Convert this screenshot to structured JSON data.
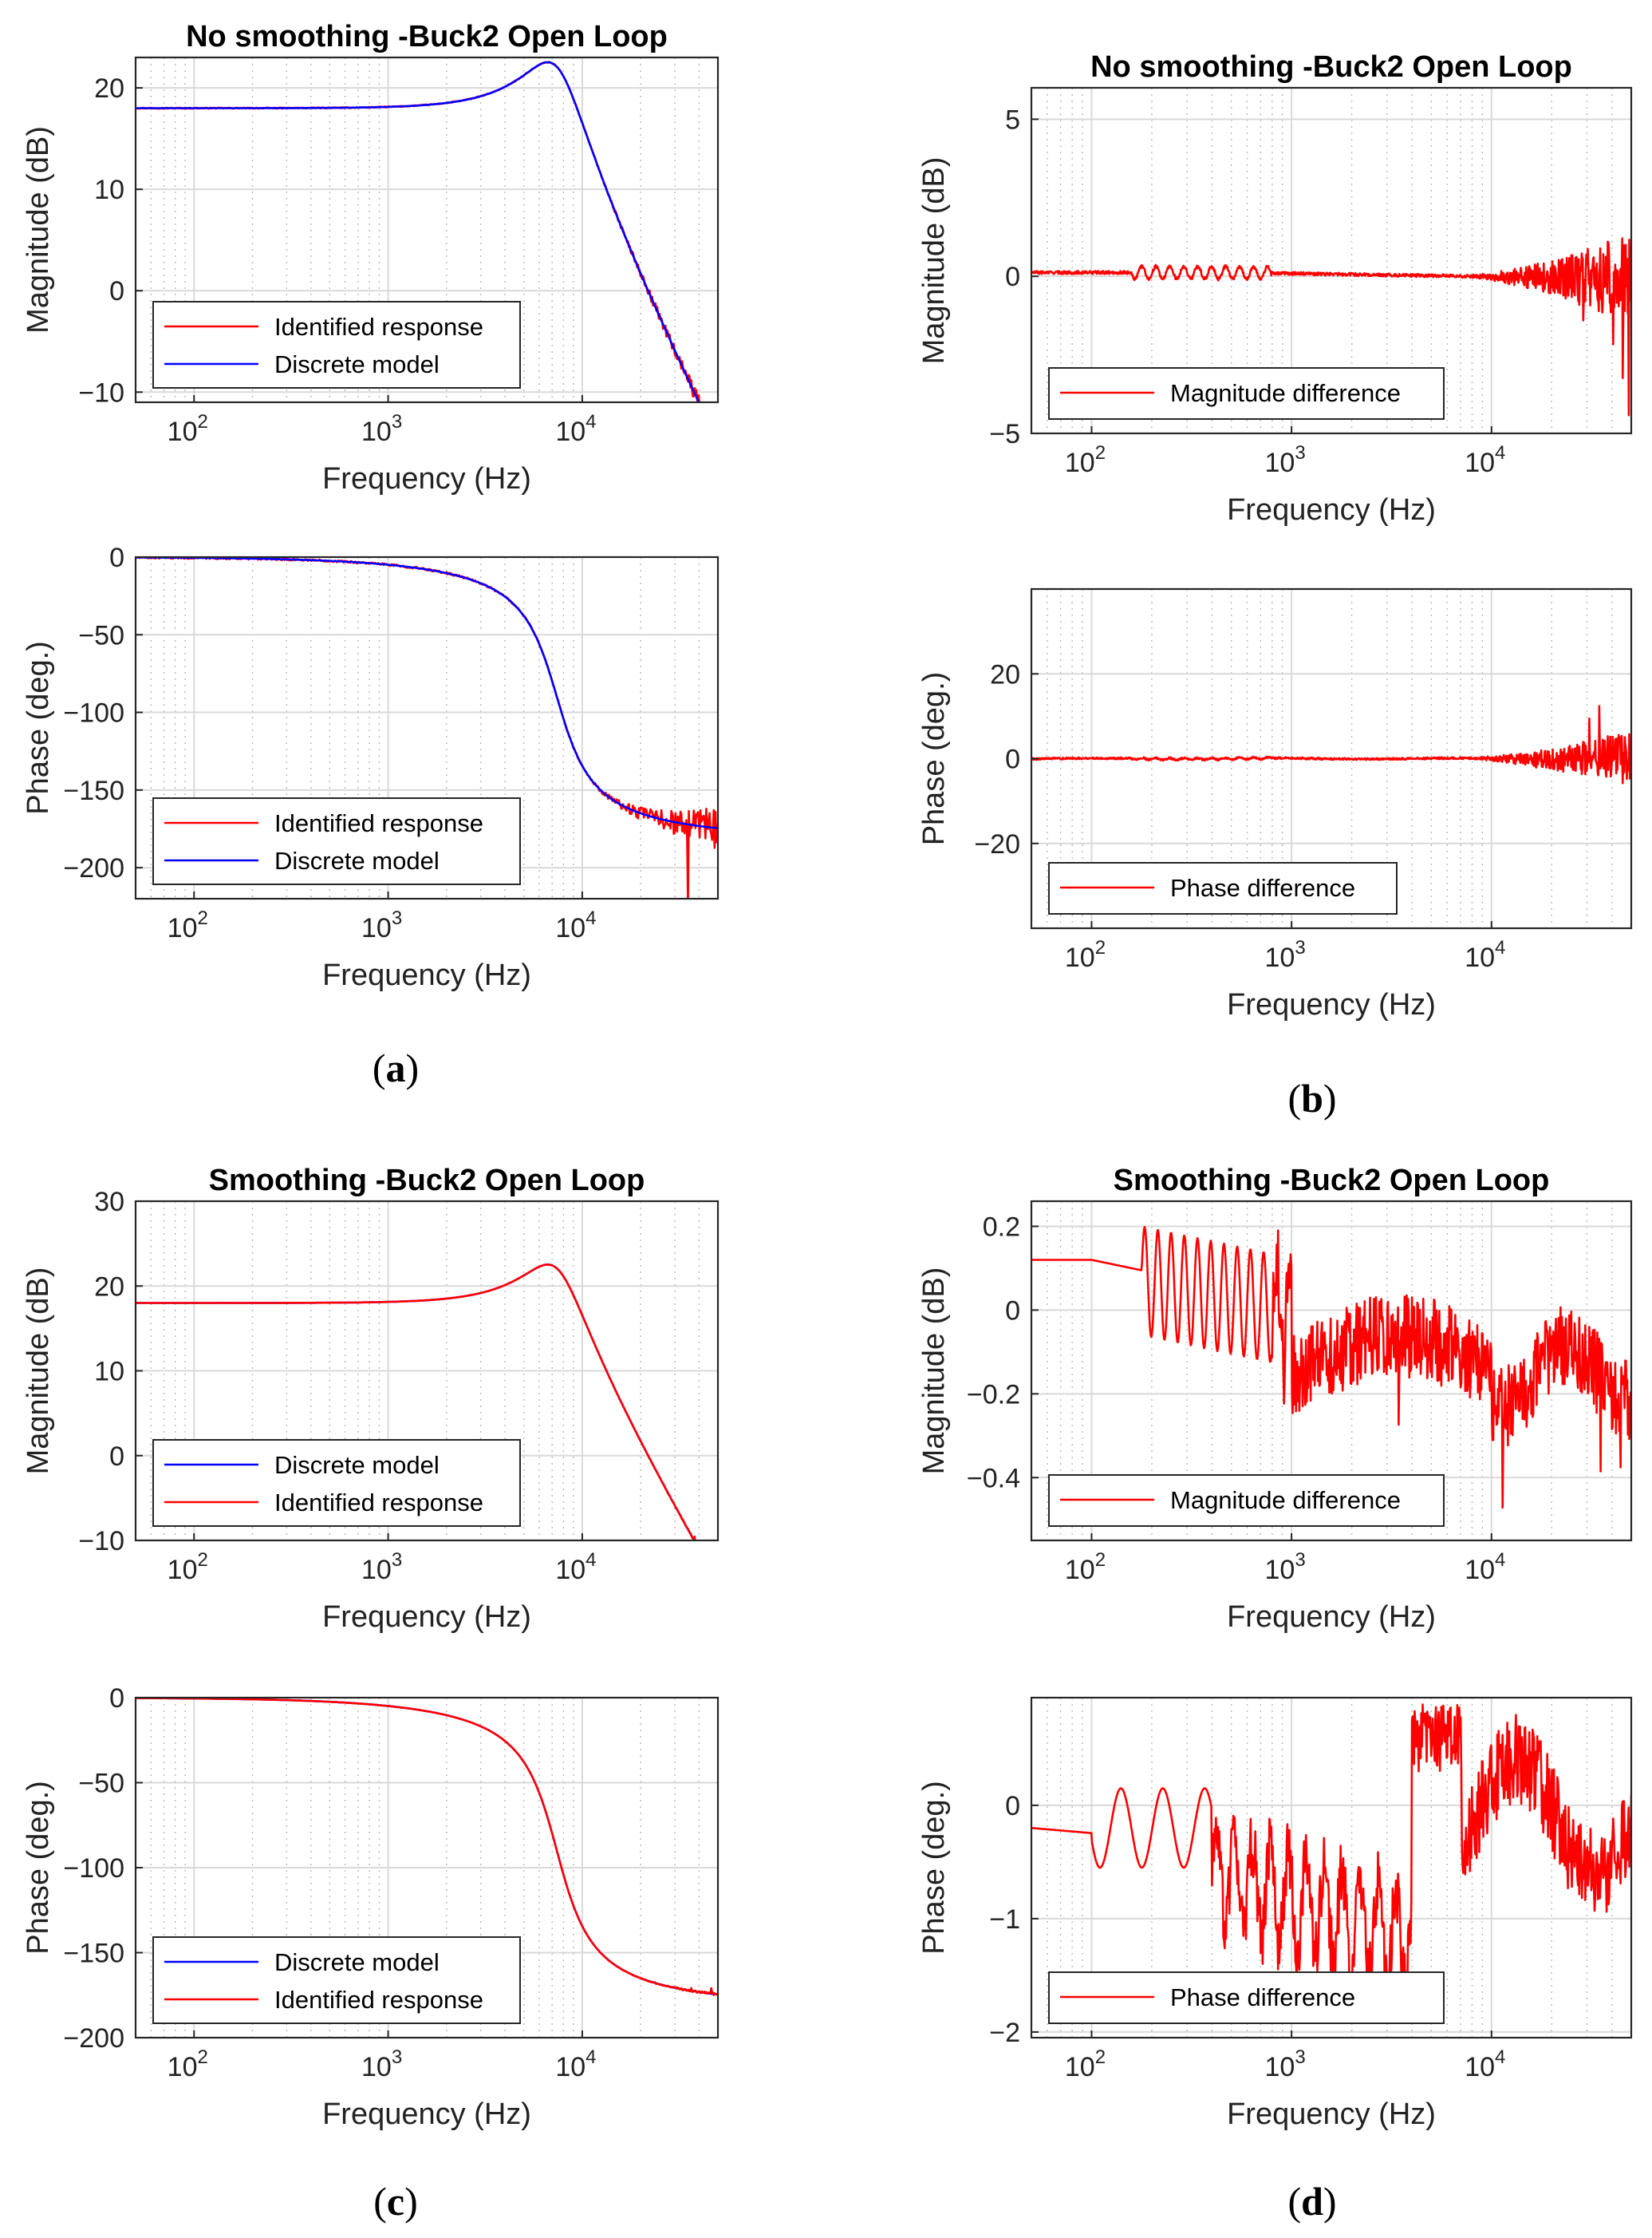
{
  "figure": {
    "captions": [
      "(a)",
      "(b)",
      "(c)",
      "(d)"
    ],
    "caption_letters": [
      "a",
      "b",
      "c",
      "d"
    ],
    "colors": {
      "identified": "#ff0000",
      "discrete": "#0000ff",
      "difference": "#ff0000",
      "grid": "#d9d9d9"
    }
  },
  "chart_data": [
    {
      "panel": "a-top",
      "type": "line",
      "title": "No smoothing -Buck2 Open Loop",
      "xlabel": "Frequency (Hz)",
      "ylabel": "Magnitude (dB)",
      "xscale": "log",
      "xlim": [
        50,
        50000
      ],
      "ylim": [
        -11,
        23
      ],
      "yticks": [
        -10,
        0,
        10,
        20
      ],
      "xticks": [
        "10^2",
        "10^3",
        "10^4"
      ],
      "legend": [
        "Identified response",
        "Discrete model"
      ],
      "legend_position": "lower-left",
      "series": [
        {
          "name": "Identified response",
          "color": "#ff0000",
          "model": "mag",
          "noise": 0.6
        },
        {
          "name": "Discrete model",
          "color": "#0000ff",
          "model": "mag",
          "noise": 0
        }
      ]
    },
    {
      "panel": "a-bottom",
      "type": "line",
      "title": "",
      "xlabel": "Frequency (Hz)",
      "ylabel": "Phase (deg.)",
      "xscale": "log",
      "xlim": [
        50,
        50000
      ],
      "ylim": [
        -220,
        0
      ],
      "yticks": [
        -200,
        -150,
        -100,
        -50,
        0
      ],
      "xticks": [
        "10^2",
        "10^3",
        "10^4"
      ],
      "legend": [
        "Identified response",
        "Discrete model"
      ],
      "legend_position": "lower-left",
      "series": [
        {
          "name": "Identified response",
          "color": "#ff0000",
          "model": "phase",
          "noise": 8
        },
        {
          "name": "Discrete model",
          "color": "#0000ff",
          "model": "phase",
          "noise": 0
        }
      ]
    },
    {
      "panel": "b-top",
      "type": "line",
      "title": "No smoothing -Buck2 Open Loop",
      "xlabel": "Frequency (Hz)",
      "ylabel": "Magnitude (dB)",
      "xscale": "log",
      "xlim": [
        50,
        50000
      ],
      "ylim": [
        -5,
        6
      ],
      "yticks": [
        -5,
        0,
        5
      ],
      "xticks": [
        "10^2",
        "10^3",
        "10^4"
      ],
      "legend": [
        "Magnitude difference"
      ],
      "legend_position": "lower-left",
      "series": [
        {
          "name": "Magnitude difference",
          "color": "#ff0000",
          "model": "diff_mag",
          "noise": 1
        }
      ]
    },
    {
      "panel": "b-bottom",
      "type": "line",
      "title": "",
      "xlabel": "Frequency (Hz)",
      "ylabel": "Phase (deg.)",
      "xscale": "log",
      "xlim": [
        50,
        50000
      ],
      "ylim": [
        -40,
        40
      ],
      "yticks": [
        -20,
        0,
        20
      ],
      "xticks": [
        "10^2",
        "10^3",
        "10^4"
      ],
      "legend": [
        "Phase difference"
      ],
      "legend_position": "lower-left",
      "series": [
        {
          "name": "Phase difference",
          "color": "#ff0000",
          "model": "diff_phase",
          "noise": 1
        }
      ]
    },
    {
      "panel": "c-top",
      "type": "line",
      "title": "Smoothing -Buck2 Open Loop",
      "xlabel": "Frequency (Hz)",
      "ylabel": "Magnitude (dB)",
      "xscale": "log",
      "xlim": [
        50,
        50000
      ],
      "ylim": [
        -10,
        30
      ],
      "yticks": [
        -10,
        0,
        10,
        20,
        30
      ],
      "xticks": [
        "10^2",
        "10^3",
        "10^4"
      ],
      "legend": [
        "Discrete model",
        "Identified response"
      ],
      "legend_position": "lower-left",
      "series": [
        {
          "name": "Discrete model",
          "color": "#0000ff",
          "model": "mag",
          "noise": 0
        },
        {
          "name": "Identified response",
          "color": "#ff0000",
          "model": "mag",
          "noise": 0.08
        }
      ]
    },
    {
      "panel": "c-bottom",
      "type": "line",
      "title": "",
      "xlabel": "Frequency (Hz)",
      "ylabel": "Phase (deg.)",
      "xscale": "log",
      "xlim": [
        50,
        50000
      ],
      "ylim": [
        -200,
        0
      ],
      "yticks": [
        -200,
        -150,
        -100,
        -50,
        0
      ],
      "xticks": [
        "10^2",
        "10^3",
        "10^4"
      ],
      "legend": [
        "Discrete model",
        "Identified response"
      ],
      "legend_position": "lower-left",
      "series": [
        {
          "name": "Discrete model",
          "color": "#0000ff",
          "model": "phase",
          "noise": 0
        },
        {
          "name": "Identified response",
          "color": "#ff0000",
          "model": "phase",
          "noise": 0.5
        }
      ]
    },
    {
      "panel": "d-top",
      "type": "line",
      "title": "Smoothing -Buck2 Open Loop",
      "xlabel": "Frequency (Hz)",
      "ylabel": "Magnitude (dB)",
      "xscale": "log",
      "xlim": [
        50,
        50000
      ],
      "ylim": [
        -0.55,
        0.26
      ],
      "yticks": [
        -0.4,
        -0.2,
        0,
        0.2
      ],
      "xticks": [
        "10^2",
        "10^3",
        "10^4"
      ],
      "legend": [
        "Magnitude difference"
      ],
      "legend_position": "lower-left",
      "series": [
        {
          "name": "Magnitude difference",
          "color": "#ff0000",
          "model": "smooth_mag",
          "noise": 1
        }
      ]
    },
    {
      "panel": "d-bottom",
      "type": "line",
      "title": "",
      "xlabel": "Frequency (Hz)",
      "ylabel": "Phase (deg.)",
      "xscale": "log",
      "xlim": [
        50,
        50000
      ],
      "ylim": [
        -2.05,
        0.95
      ],
      "yticks": [
        -2,
        -1,
        0
      ],
      "xticks": [
        "10^2",
        "10^3",
        "10^4"
      ],
      "legend": [
        "Phase difference"
      ],
      "legend_position": "lower-left",
      "series": [
        {
          "name": "Phase difference",
          "color": "#ff0000",
          "model": "smooth_phase",
          "noise": 1
        }
      ]
    }
  ]
}
